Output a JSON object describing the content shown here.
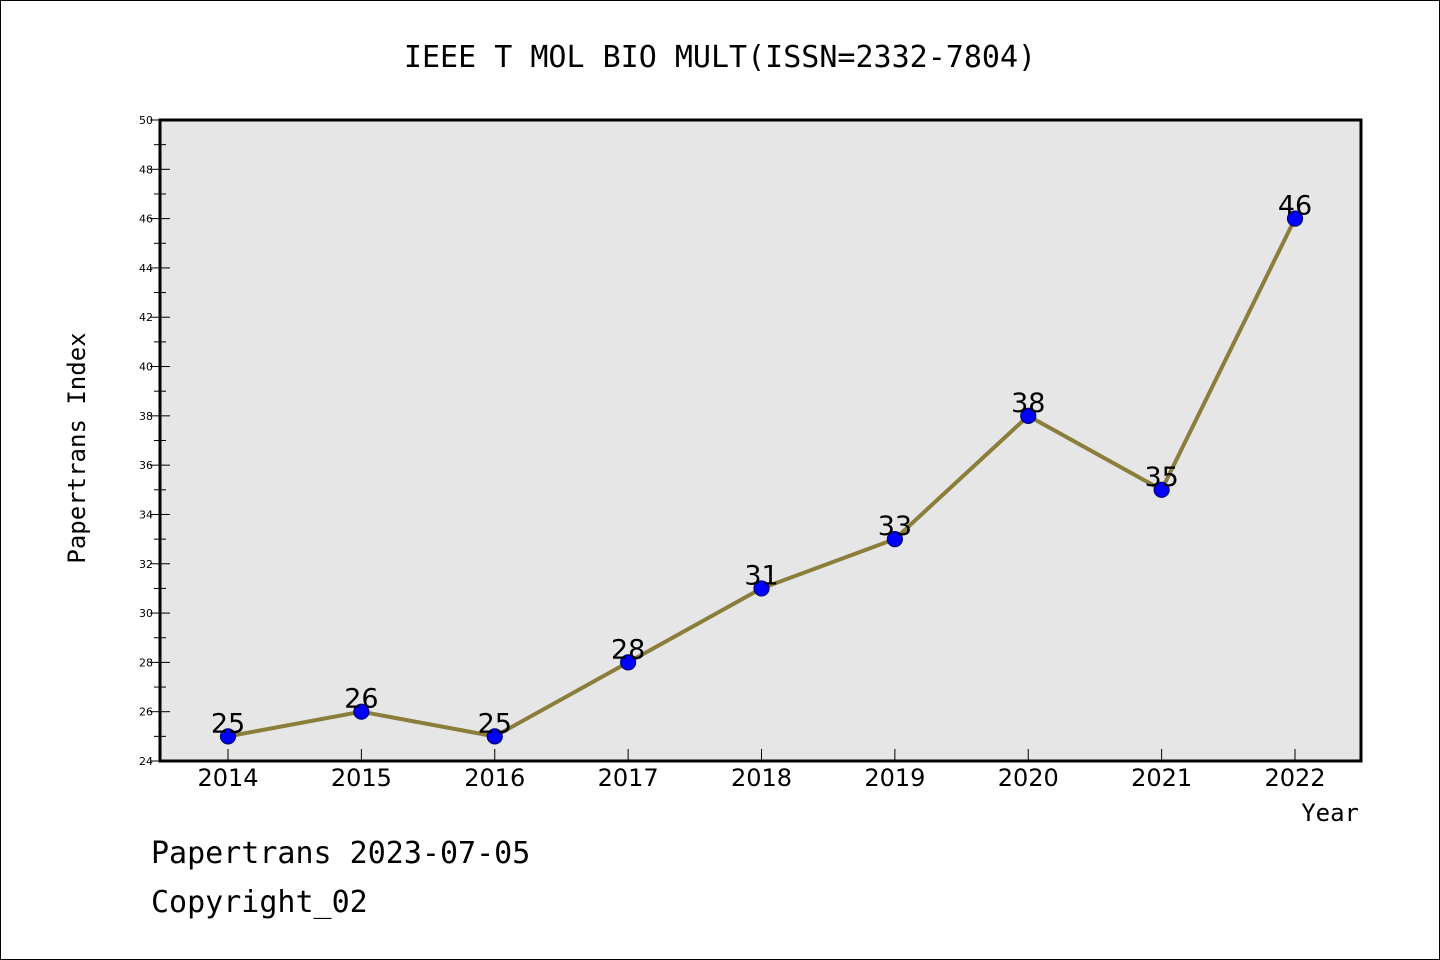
{
  "chart_data": {
    "type": "line",
    "title": "IEEE T MOL BIO MULT(ISSN=2332-7804)",
    "xlabel": "Year",
    "ylabel": "Papertrans Index",
    "categories": [
      "2014",
      "2015",
      "2016",
      "2017",
      "2018",
      "2019",
      "2020",
      "2021",
      "2022"
    ],
    "series": [
      {
        "values": [
          25,
          26,
          25,
          28,
          31,
          33,
          38,
          35,
          46
        ]
      }
    ],
    "data_labels": [
      "25",
      "26",
      "25",
      "28",
      "31",
      "33",
      "38",
      "35",
      "46"
    ],
    "ylim": [
      24,
      50
    ],
    "y_ticks": [
      "24",
      "26",
      "28",
      "30",
      "32",
      "34",
      "36",
      "38",
      "40",
      "42",
      "44",
      "46",
      "48",
      "50"
    ],
    "grid": false,
    "legend": "none",
    "colors": {
      "line": "#8b7d3a",
      "marker_fill": "#0000ff",
      "marker_edge": "#00007a",
      "plot_background": "#e6e6e6",
      "axes": "#000000"
    }
  },
  "footer": {
    "date_line": "Papertrans 2023-07-05",
    "copyright_line": "Copyright_02"
  }
}
